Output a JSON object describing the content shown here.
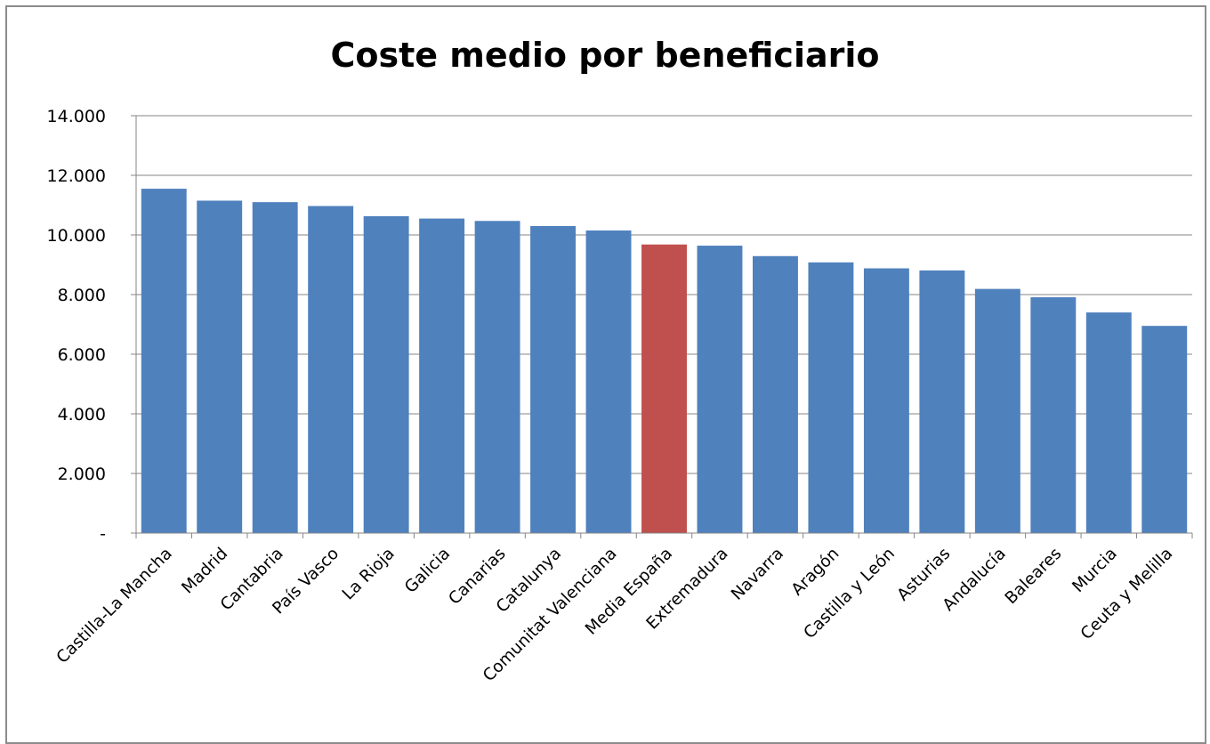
{
  "chart_data": {
    "type": "bar",
    "title": "Coste medio por beneficiario",
    "xlabel": "",
    "ylabel": "",
    "ylim": [
      0,
      14000
    ],
    "yticks": [
      {
        "value": 0,
        "label": "-"
      },
      {
        "value": 2000,
        "label": "2.000"
      },
      {
        "value": 4000,
        "label": "4.000"
      },
      {
        "value": 6000,
        "label": "6.000"
      },
      {
        "value": 8000,
        "label": "8.000"
      },
      {
        "value": 10000,
        "label": "10.000"
      },
      {
        "value": 12000,
        "label": "12.000"
      },
      {
        "value": 14000,
        "label": "14.000"
      }
    ],
    "grid": true,
    "legend": "none",
    "colors": {
      "default": "#4f81bd",
      "highlight": "#c0504d",
      "grid": "#868686",
      "axis": "#868686"
    },
    "highlight_category": "Media España",
    "categories": [
      "Castilla-La Mancha",
      "Madrid",
      "Cantabria",
      "País Vasco",
      "La Rioja",
      "Galicia",
      "Canarias",
      "Catalunya",
      "Comunitat Valenciana",
      "Media España",
      "Extremadura",
      "Navarra",
      "Aragón",
      "Castilla y León",
      "Asturias",
      "Andalucía",
      "Baleares",
      "Murcia",
      "Ceuta y Melilla"
    ],
    "values": [
      11550,
      11150,
      11100,
      10970,
      10630,
      10550,
      10470,
      10300,
      10150,
      9680,
      9640,
      9290,
      9080,
      8880,
      8810,
      8190,
      7910,
      7400,
      6950
    ]
  }
}
